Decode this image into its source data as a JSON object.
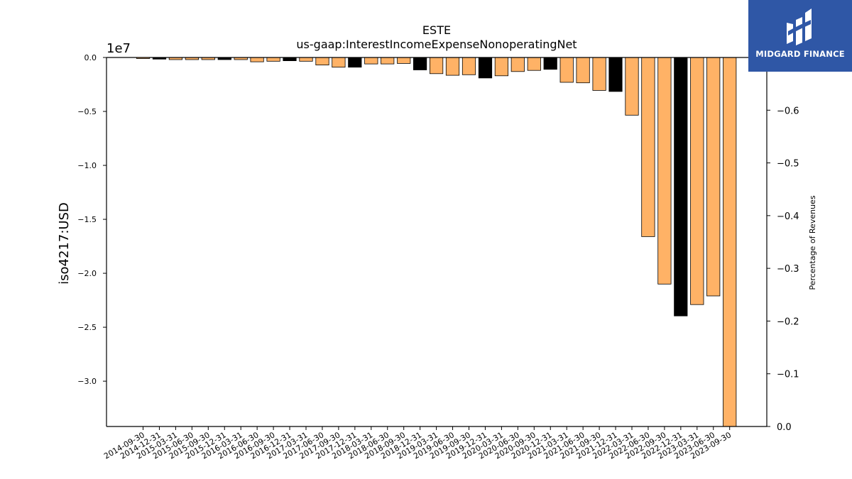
{
  "chart_data": {
    "type": "bar",
    "title": "ESTE",
    "subtitle": "us-gaap:InterestIncomeExpenseNonoperatingNet",
    "ylabel": "iso4217:USD",
    "ylabel_right": "Percentage of Revenues",
    "y_offset_label": "1e7",
    "ylim": [
      -3.42,
      0.0
    ],
    "ylim_right": [
      0.0,
      -0.7
    ],
    "y_ticks": [
      "0.0",
      "−0.5",
      "−1.0",
      "−1.5",
      "−2.0",
      "−2.5",
      "−3.0"
    ],
    "y_ticks_right": [
      "0.0",
      "−0.1",
      "−0.2",
      "−0.3",
      "−0.4",
      "−0.5",
      "−0.6"
    ],
    "colors": {
      "quarter": "#ffb266",
      "annual": "#000000"
    },
    "categories": [
      "2014-09-30",
      "2014-12-31",
      "2015-03-31",
      "2015-06-30",
      "2015-09-30",
      "2015-12-31",
      "2016-03-31",
      "2016-06-30",
      "2016-09-30",
      "2016-12-31",
      "2017-03-31",
      "2017-06-30",
      "2017-09-30",
      "2017-12-31",
      "2018-03-31",
      "2018-06-30",
      "2018-09-30",
      "2018-12-31",
      "2019-03-31",
      "2019-06-30",
      "2019-09-30",
      "2019-12-31",
      "2020-03-31",
      "2020-06-30",
      "2020-09-30",
      "2020-12-31",
      "2021-03-31",
      "2021-06-30",
      "2021-09-30",
      "2021-12-31",
      "2022-03-31",
      "2022-06-30",
      "2022-09-30",
      "2022-12-31",
      "2023-03-31",
      "2023-06-30",
      "2023-09-30"
    ],
    "values": [
      -0.01,
      -0.015,
      -0.02,
      -0.02,
      -0.02,
      -0.02,
      -0.02,
      -0.04,
      -0.035,
      -0.03,
      -0.035,
      -0.07,
      -0.09,
      -0.09,
      -0.06,
      -0.06,
      -0.055,
      -0.115,
      -0.15,
      -0.165,
      -0.16,
      -0.19,
      -0.17,
      -0.13,
      -0.12,
      -0.11,
      -0.23,
      -0.235,
      -0.305,
      -0.315,
      -0.535,
      -1.66,
      -2.1,
      -2.395,
      -2.29,
      -2.21,
      -3.42
    ],
    "annual": [
      false,
      true,
      false,
      false,
      false,
      true,
      false,
      false,
      false,
      true,
      false,
      false,
      false,
      true,
      false,
      false,
      false,
      true,
      false,
      false,
      false,
      true,
      false,
      false,
      false,
      true,
      false,
      false,
      false,
      true,
      false,
      false,
      false,
      true,
      false,
      false,
      false
    ]
  },
  "logo": {
    "text": "MIDGARD FINANCE"
  }
}
